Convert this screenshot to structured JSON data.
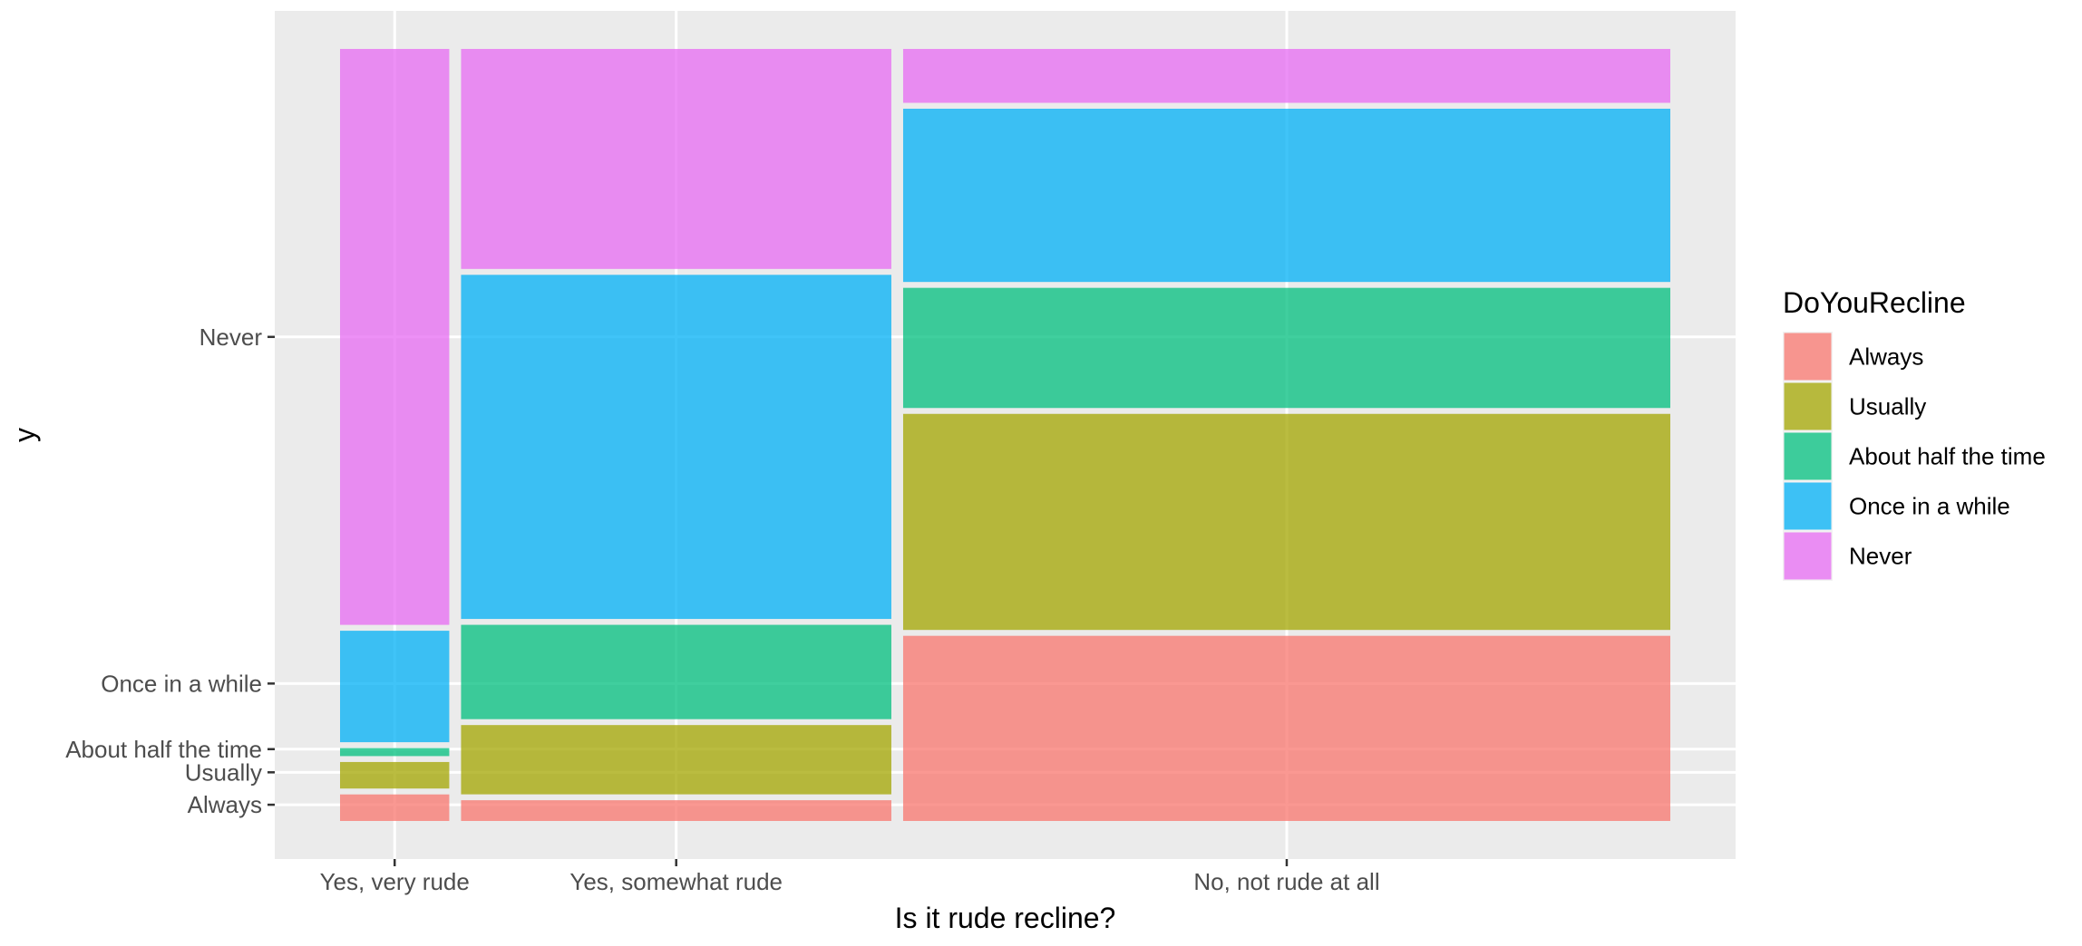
{
  "chart_data": {
    "type": "mosaic",
    "title": "",
    "xlabel": "Is it rude recline?",
    "ylabel": "y",
    "categories": [
      "Yes, very rude",
      "Yes, somewhat rude",
      "No, not rude at all"
    ],
    "category_widths": [
      0.083,
      0.327,
      0.583
    ],
    "series": [
      {
        "name": "Always",
        "color": "#F8766D",
        "values": [
          0.042,
          0.034,
          0.241
        ]
      },
      {
        "name": "Usually",
        "color": "#A3A500",
        "values": [
          0.042,
          0.096,
          0.28
        ]
      },
      {
        "name": "About half the time",
        "color": "#00BF7D",
        "values": [
          0.018,
          0.128,
          0.159
        ]
      },
      {
        "name": "Once in a while",
        "color": "#00B0F6",
        "values": [
          0.152,
          0.447,
          0.226
        ]
      },
      {
        "name": "Never",
        "color": "#E76BF3",
        "values": [
          0.746,
          0.281,
          0.068
        ]
      }
    ],
    "y_ticks": [
      "Always",
      "Usually",
      "About half the time",
      "Once in a while",
      "Never"
    ],
    "ylim": [
      0,
      1
    ],
    "grid": true,
    "legend": {
      "title": "DoYouRecline",
      "position": "right"
    },
    "panel_background": "#EBEBEB"
  }
}
